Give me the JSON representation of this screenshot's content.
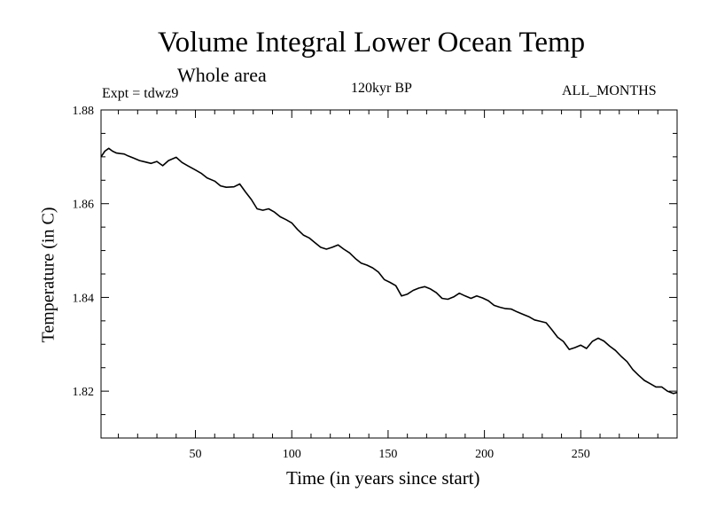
{
  "chart_data": {
    "type": "line",
    "title": "Volume Integral Lower Ocean Temp",
    "subtitle": "Whole area",
    "experiment_label": "Expt = tdwz9",
    "period_label": "120kyr BP",
    "months_label": "ALL_MONTHS",
    "xlabel": "Time (in years since start)",
    "ylabel": "Temperature (in C)",
    "xlim": [
      1,
      300
    ],
    "ylim": [
      1.81,
      1.88
    ],
    "x_ticks": [
      50,
      100,
      150,
      200,
      250
    ],
    "x_tick_labels": [
      "50",
      "100",
      "150",
      "200",
      "250"
    ],
    "y_ticks": [
      1.82,
      1.84,
      1.86,
      1.88
    ],
    "y_tick_labels": [
      "1.82",
      "1.84",
      "1.86",
      "1.88"
    ],
    "grid": false,
    "series": [
      {
        "line_color": "#000000",
        "x": [
          1,
          3,
          5,
          7,
          9,
          11,
          13,
          15,
          18,
          21,
          24,
          27,
          30,
          33,
          36,
          40,
          43,
          46,
          50,
          53,
          56,
          60,
          63,
          66,
          70,
          73,
          76,
          79,
          82,
          85,
          88,
          91,
          94,
          97,
          100,
          103,
          106,
          109,
          112,
          115,
          118,
          121,
          124,
          127,
          130,
          133,
          136,
          139,
          142,
          145,
          148,
          151,
          154,
          157,
          160,
          163,
          166,
          169,
          172,
          175,
          178,
          181,
          184,
          187,
          190,
          193,
          196,
          199,
          202,
          205,
          208,
          211,
          214,
          217,
          220,
          223,
          226,
          229,
          232,
          235,
          238,
          241,
          244,
          247,
          250,
          253,
          256,
          259,
          262,
          265,
          268,
          271,
          274,
          277,
          280,
          283,
          286,
          289,
          292,
          295,
          298,
          300
        ],
        "y": [
          1.87,
          1.8712,
          1.8718,
          1.8712,
          1.8708,
          1.8707,
          1.8706,
          1.8702,
          1.8697,
          1.8692,
          1.8689,
          1.8686,
          1.869,
          1.8681,
          1.8692,
          1.8699,
          1.8688,
          1.8681,
          1.8672,
          1.8665,
          1.8655,
          1.8648,
          1.8638,
          1.8635,
          1.8636,
          1.8642,
          1.8625,
          1.8609,
          1.8589,
          1.8586,
          1.8589,
          1.8582,
          1.8572,
          1.8566,
          1.8559,
          1.8545,
          1.8533,
          1.8527,
          1.8517,
          1.8507,
          1.8503,
          1.8507,
          1.8512,
          1.8503,
          1.8495,
          1.8483,
          1.8473,
          1.8469,
          1.8463,
          1.8454,
          1.8438,
          1.8432,
          1.8425,
          1.8403,
          1.8407,
          1.8415,
          1.842,
          1.8423,
          1.8418,
          1.841,
          1.8398,
          1.8396,
          1.8401,
          1.8409,
          1.8403,
          1.8398,
          1.8403,
          1.8399,
          1.8393,
          1.8383,
          1.8379,
          1.8376,
          1.8375,
          1.8369,
          1.8364,
          1.8359,
          1.8352,
          1.8349,
          1.8346,
          1.8331,
          1.8315,
          1.8306,
          1.8289,
          1.8293,
          1.8298,
          1.8291,
          1.8306,
          1.8313,
          1.8307,
          1.8296,
          1.8287,
          1.8274,
          1.8263,
          1.8246,
          1.8234,
          1.8223,
          1.8216,
          1.8209,
          1.8209,
          1.82,
          1.8195,
          1.8197
        ]
      }
    ]
  }
}
